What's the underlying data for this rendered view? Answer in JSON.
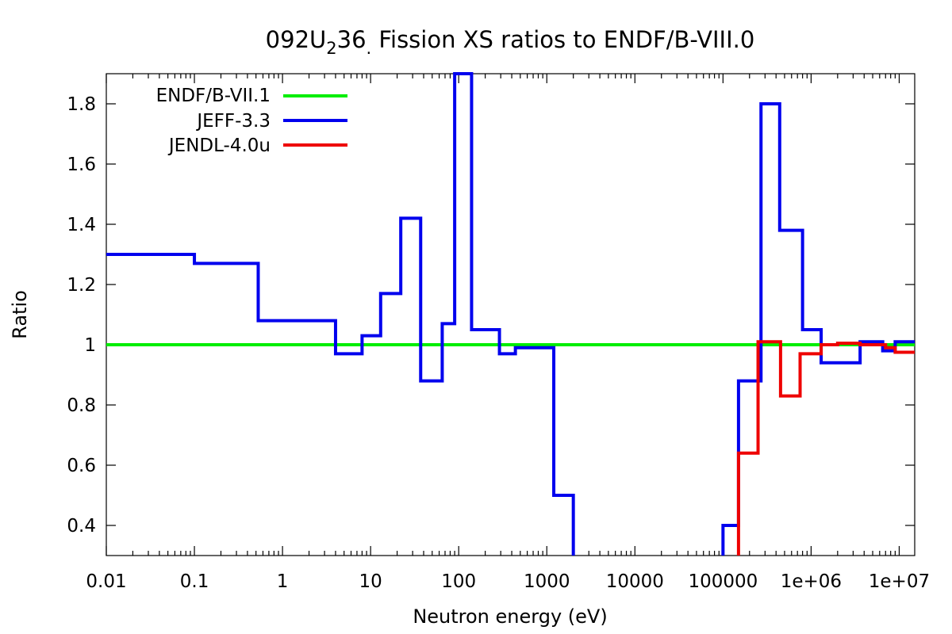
{
  "chart_data": {
    "type": "line",
    "title": {
      "pre": "092U",
      "sub": "2",
      "mid": "36",
      "sub2": ".",
      "post": " Fission XS ratios to ENDF/B-VIII.0"
    },
    "xlabel": "Neutron energy (eV)",
    "ylabel": "Ratio",
    "xscale": "log",
    "xlim": [
      0.01,
      15000000
    ],
    "ylim": [
      0.3,
      1.9
    ],
    "x_ticks": [
      {
        "value": 0.01,
        "label": "0.01"
      },
      {
        "value": 0.1,
        "label": "0.1"
      },
      {
        "value": 1,
        "label": "1"
      },
      {
        "value": 10,
        "label": "10"
      },
      {
        "value": 100,
        "label": "100"
      },
      {
        "value": 1000,
        "label": "1000"
      },
      {
        "value": 10000,
        "label": "10000"
      },
      {
        "value": 100000,
        "label": "100000"
      },
      {
        "value": 1000000,
        "label": "1e+06"
      },
      {
        "value": 10000000,
        "label": "1e+07"
      }
    ],
    "y_ticks": [
      {
        "value": 0.4,
        "label": "0.4"
      },
      {
        "value": 0.6,
        "label": "0.6"
      },
      {
        "value": 0.8,
        "label": "0.8"
      },
      {
        "value": 1.0,
        "label": "1"
      },
      {
        "value": 1.2,
        "label": "1.2"
      },
      {
        "value": 1.4,
        "label": "1.4"
      },
      {
        "value": 1.6,
        "label": "1.6"
      },
      {
        "value": 1.8,
        "label": "1.8"
      }
    ],
    "grid": false,
    "legend_position": "top-left",
    "series": [
      {
        "name": "ENDF/B-VII.1",
        "color": "#00ee00",
        "style": "line",
        "points": [
          [
            0.01,
            1.0
          ],
          [
            15000000,
            1.0
          ]
        ]
      },
      {
        "name": "JEFF-3.3",
        "color": "#0000ee",
        "style": "step",
        "points": [
          [
            0.01,
            1.3
          ],
          [
            0.1,
            1.3
          ],
          [
            0.1,
            1.27
          ],
          [
            0.53,
            1.27
          ],
          [
            0.53,
            1.08
          ],
          [
            4.0,
            1.08
          ],
          [
            4.0,
            0.97
          ],
          [
            8.0,
            0.97
          ],
          [
            8.0,
            1.03
          ],
          [
            13,
            1.03
          ],
          [
            13,
            1.17
          ],
          [
            22,
            1.17
          ],
          [
            22,
            1.42
          ],
          [
            37,
            1.42
          ],
          [
            37,
            0.88
          ],
          [
            65,
            0.88
          ],
          [
            65,
            1.07
          ],
          [
            90,
            1.07
          ],
          [
            90,
            1.9
          ],
          [
            140,
            1.9
          ],
          [
            140,
            1.05
          ],
          [
            290,
            1.05
          ],
          [
            290,
            0.97
          ],
          [
            440,
            0.97
          ],
          [
            440,
            0.99
          ],
          [
            700,
            0.99
          ],
          [
            700,
            0.99
          ],
          [
            1200,
            0.99
          ],
          [
            1200,
            0.5
          ],
          [
            2000,
            0.5
          ],
          [
            2000,
            0.3
          ]
        ],
        "points2": [
          [
            100000,
            0.3
          ],
          [
            100000,
            0.4
          ],
          [
            150000,
            0.4
          ],
          [
            150000,
            0.88
          ],
          [
            270000,
            0.88
          ],
          [
            270000,
            1.8
          ],
          [
            440000,
            1.8
          ],
          [
            440000,
            1.38
          ],
          [
            800000,
            1.38
          ],
          [
            800000,
            1.05
          ],
          [
            1300000,
            1.05
          ],
          [
            1300000,
            0.94
          ],
          [
            3600000,
            0.94
          ],
          [
            3600000,
            1.01
          ],
          [
            6500000,
            1.01
          ],
          [
            6500000,
            0.98
          ],
          [
            9000000,
            0.98
          ],
          [
            9000000,
            1.01
          ],
          [
            15000000,
            1.01
          ]
        ]
      },
      {
        "name": "JENDL-4.0u",
        "color": "#ee0000",
        "style": "step",
        "points": [
          [
            150000,
            0.3
          ],
          [
            150000,
            0.64
          ],
          [
            250000,
            0.64
          ],
          [
            250000,
            1.01
          ],
          [
            450000,
            1.01
          ],
          [
            450000,
            0.83
          ],
          [
            750000,
            0.83
          ],
          [
            750000,
            0.97
          ],
          [
            1300000,
            0.97
          ],
          [
            1300000,
            1.0
          ],
          [
            2000000,
            1.0
          ],
          [
            2000000,
            1.005
          ],
          [
            3600000,
            1.005
          ],
          [
            3600000,
            1.0
          ],
          [
            7000000,
            1.0
          ],
          [
            7000000,
            0.99
          ],
          [
            9000000,
            0.99
          ],
          [
            9000000,
            0.975
          ],
          [
            15000000,
            0.975
          ]
        ]
      }
    ]
  }
}
